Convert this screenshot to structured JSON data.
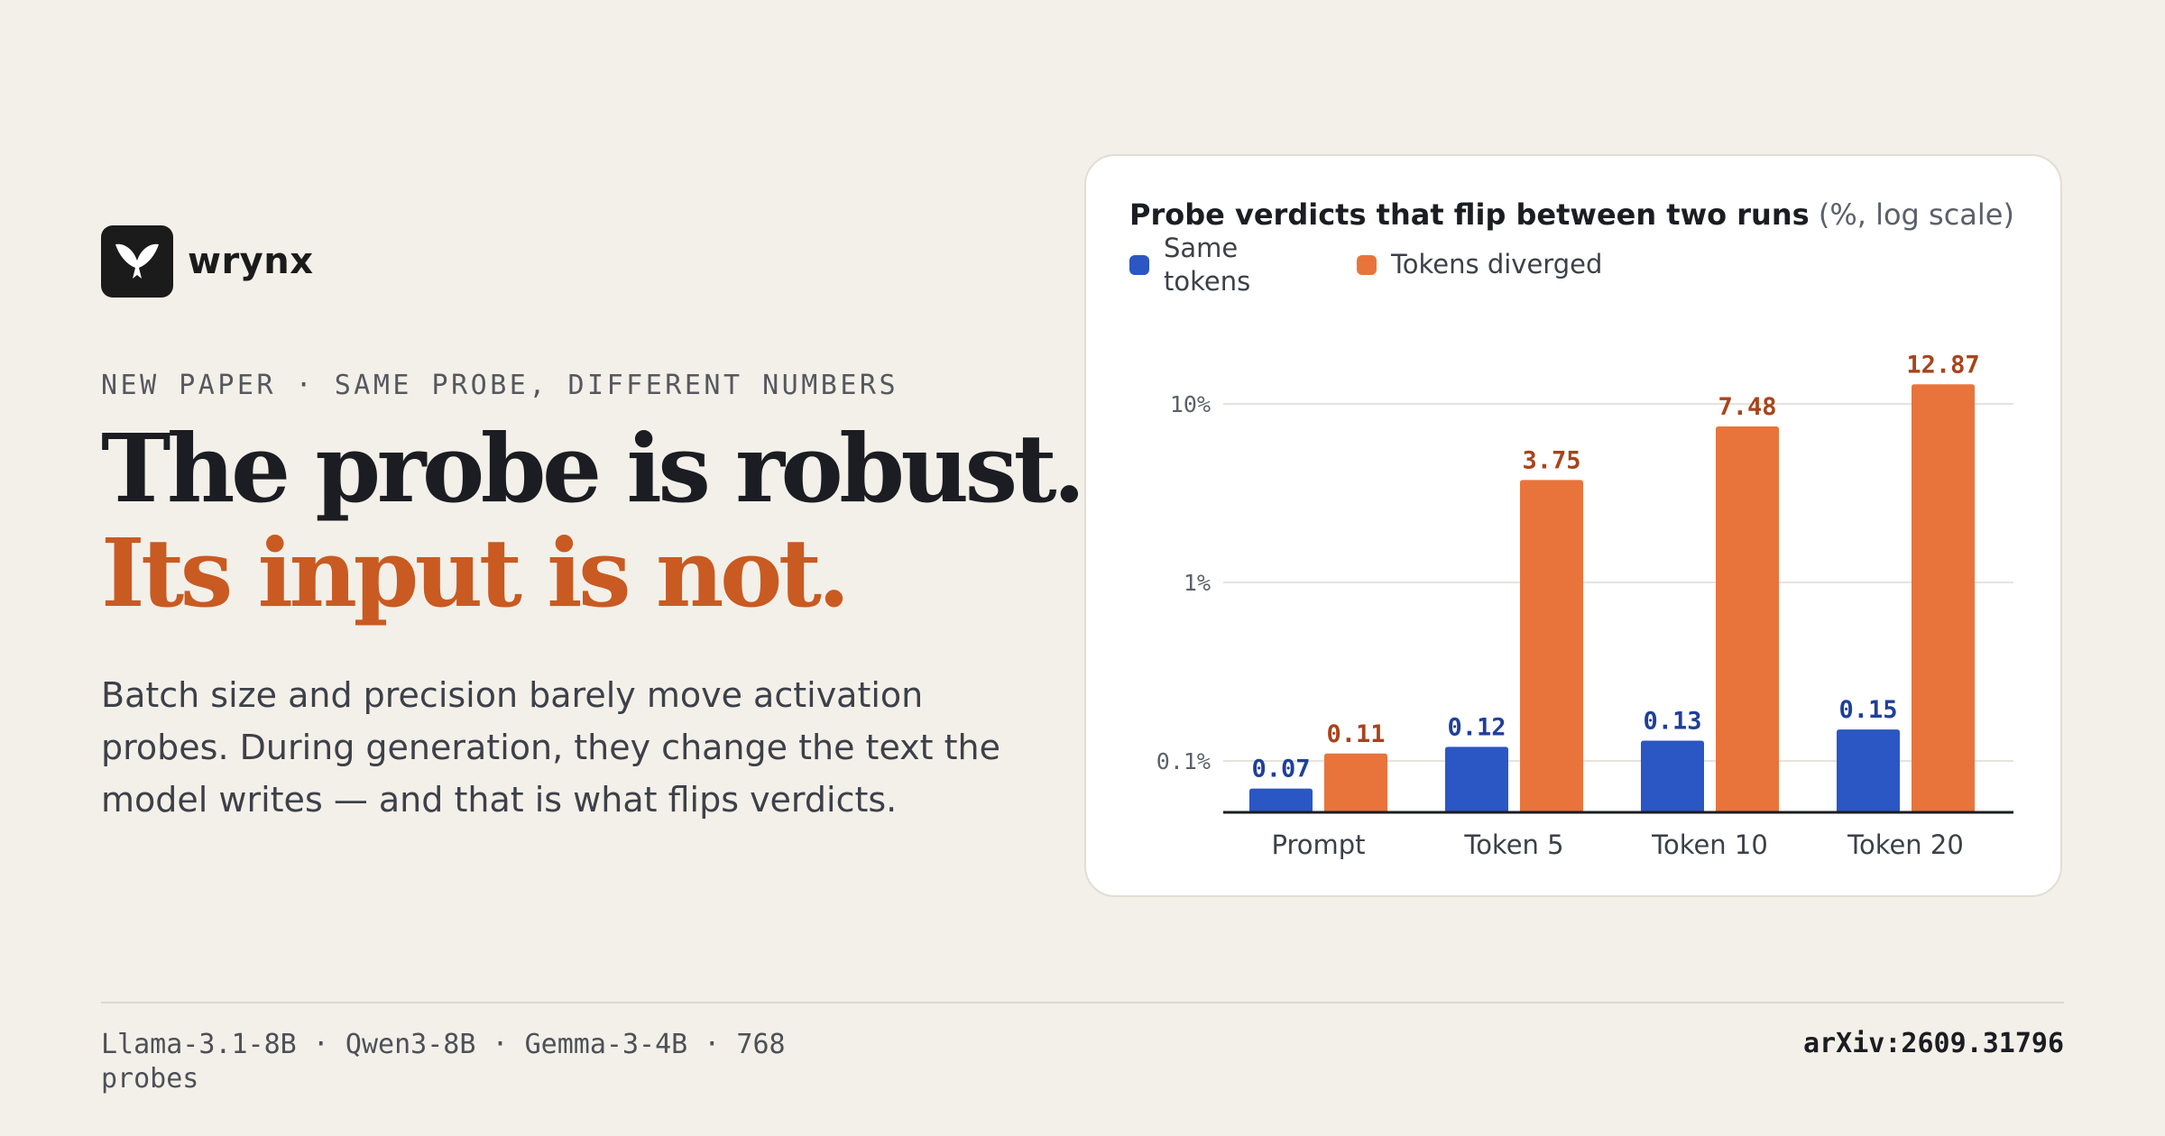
{
  "brand": {
    "name": "wrynx",
    "logo_icon": "bird-logo-icon"
  },
  "eyebrow": "NEW PAPER · SAME PROBE, DIFFERENT NUMBERS",
  "headline": {
    "line1": "The probe is robust.",
    "line2": "Its input is not."
  },
  "lede": "Batch size and precision barely move activation probes. During generation, they change the text the model writes — and that is what flips verdicts.",
  "footer": {
    "models": "Llama-3.1-8B · Qwen3-8B · Gemma-3-4B · 768 probes",
    "arxiv": "arXiv:2609.31796"
  },
  "colors": {
    "accent": "#c95a22",
    "same": "#2b57c4",
    "diverged": "#e8743c"
  },
  "chart_data": {
    "type": "bar",
    "title": "Probe verdicts that flip between two runs",
    "title_unit": "(%, log scale)",
    "categories": [
      "Prompt",
      "Token 5",
      "Token 10",
      "Token 20"
    ],
    "series": [
      {
        "name": "Same tokens",
        "values": [
          0.07,
          0.12,
          0.13,
          0.15
        ],
        "color": "#2b57c4",
        "label_color": "#1f3f99"
      },
      {
        "name": "Tokens diverged",
        "values": [
          0.11,
          3.75,
          7.48,
          12.87
        ],
        "color": "#e8743c",
        "label_color": "#a8441b"
      }
    ],
    "yscale": "log",
    "ylim": [
      0.05,
      17
    ],
    "yticks": [
      0.1,
      1,
      10
    ],
    "ytick_labels": [
      "0.1%",
      "1%",
      "10%"
    ],
    "grid": true,
    "legend": "top-left"
  }
}
